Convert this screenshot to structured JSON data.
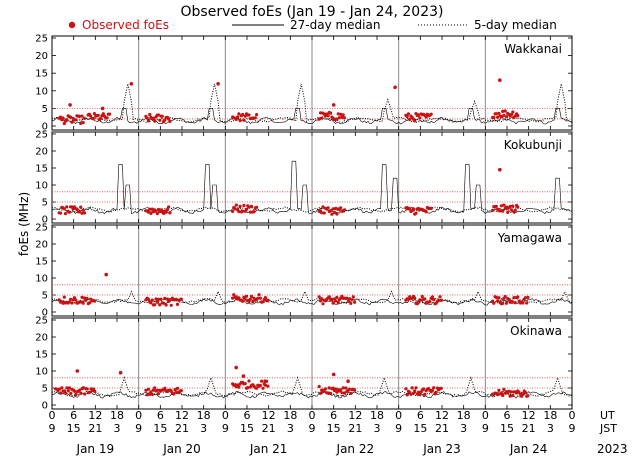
{
  "header": {
    "title": "Observed foEs (Jan 19 - Jan 24, 2023)",
    "legend_observed": "Observed foEs",
    "legend_27day": "27-day median",
    "legend_5day": "5-day median"
  },
  "axis": {
    "ylabel": "foEs (MHz)",
    "ut_label": "UT",
    "jst_label": "JST",
    "year_label": "2023",
    "ut_ticks": [
      "0",
      "6",
      "12",
      "18",
      "0",
      "6",
      "12",
      "18",
      "0",
      "6",
      "12",
      "18",
      "0",
      "6",
      "12",
      "18",
      "0",
      "6",
      "12",
      "18",
      "0",
      "6",
      "12",
      "18",
      "0"
    ],
    "jst_ticks": [
      "9",
      "15",
      "21",
      "3",
      "9",
      "15",
      "21",
      "3",
      "9",
      "15",
      "21",
      "3",
      "9",
      "15",
      "21",
      "3",
      "9",
      "15",
      "21",
      "3",
      "9",
      "15",
      "21",
      "3",
      "9"
    ],
    "day_labels": [
      "Jan 19",
      "Jan 20",
      "Jan 21",
      "Jan 22",
      "Jan 23",
      "Jan 24"
    ],
    "y_ticks": [
      "0",
      "5",
      "10",
      "15",
      "20",
      "25"
    ]
  },
  "colors": {
    "observed": "#cc1111",
    "median": "#000000",
    "threshold": "#d04040",
    "divider": "#888888"
  },
  "chart_data": {
    "type": "scatter",
    "title": "Observed foEs (Jan 19 - Jan 24, 2023)",
    "ylabel": "foEs (MHz)",
    "ylim": [
      0,
      25
    ],
    "x_unit": "UT hours from Jan 19 00:00",
    "xlim": [
      0,
      144
    ],
    "panels": [
      {
        "station": "Wakkanai",
        "threshold_lines": [
          2,
          5
        ],
        "median_27day_base": 1.5,
        "median_27day_spikes": [
          [
            20,
            5
          ],
          [
            44,
            5
          ],
          [
            68,
            5
          ],
          [
            92,
            5
          ],
          [
            116,
            5
          ],
          [
            140,
            5
          ]
        ],
        "median_5day_spikes": [
          [
            21,
            12
          ],
          [
            45,
            12
          ],
          [
            69,
            12
          ],
          [
            93,
            7.5
          ],
          [
            117,
            7
          ],
          [
            141,
            12
          ]
        ],
        "observed_clusters": [
          [
            2,
            9,
            1.8
          ],
          [
            10,
            16,
            2.5
          ],
          [
            26,
            33,
            2.2
          ],
          [
            50,
            57,
            2.5
          ],
          [
            74,
            81,
            2.8
          ],
          [
            98,
            105,
            2.5
          ],
          [
            122,
            129,
            3.5
          ]
        ],
        "observed_outliers": [
          [
            5,
            6
          ],
          [
            14,
            5
          ],
          [
            22,
            12
          ],
          [
            46,
            12
          ],
          [
            78,
            6
          ],
          [
            95,
            11
          ],
          [
            124,
            13
          ]
        ]
      },
      {
        "station": "Kokubunji",
        "threshold_lines": [
          5,
          8
        ],
        "median_27day_base": 2.5,
        "median_27day_spikes": [
          [
            19,
            16
          ],
          [
            21,
            10
          ],
          [
            43,
            16
          ],
          [
            45,
            10
          ],
          [
            67,
            17
          ],
          [
            70,
            10
          ],
          [
            92,
            16
          ],
          [
            95,
            12
          ],
          [
            115,
            16
          ],
          [
            118,
            10
          ],
          [
            140,
            12
          ]
        ],
        "median_5day_spikes": [],
        "observed_clusters": [
          [
            2,
            9,
            2.5
          ],
          [
            26,
            33,
            2.5
          ],
          [
            50,
            57,
            3
          ],
          [
            74,
            81,
            2.5
          ],
          [
            98,
            105,
            2.5
          ],
          [
            122,
            129,
            3
          ]
        ],
        "observed_outliers": [
          [
            124,
            14.5
          ]
        ]
      },
      {
        "station": "Yamagawa",
        "threshold_lines": [
          5,
          8
        ],
        "median_27day_base": 3,
        "median_27day_spikes": [],
        "median_5day_spikes": [
          [
            22,
            6
          ],
          [
            46,
            6
          ],
          [
            70,
            6
          ],
          [
            94,
            6
          ],
          [
            118,
            6
          ],
          [
            142,
            6
          ]
        ],
        "observed_clusters": [
          [
            2,
            12,
            3.5
          ],
          [
            26,
            36,
            3
          ],
          [
            50,
            60,
            4
          ],
          [
            74,
            84,
            3.5
          ],
          [
            98,
            108,
            3.5
          ],
          [
            122,
            132,
            3.5
          ]
        ],
        "observed_outliers": [
          [
            15,
            11
          ]
        ]
      },
      {
        "station": "Okinawa",
        "threshold_lines": [
          5,
          8
        ],
        "median_27day_base": 3,
        "median_27day_spikes": [],
        "median_5day_spikes": [
          [
            20,
            8
          ],
          [
            44,
            8
          ],
          [
            68,
            8
          ],
          [
            92,
            8
          ],
          [
            116,
            8
          ],
          [
            140,
            8
          ]
        ],
        "observed_clusters": [
          [
            1,
            12,
            4
          ],
          [
            26,
            36,
            4
          ],
          [
            50,
            60,
            6
          ],
          [
            74,
            84,
            4.5
          ],
          [
            98,
            108,
            4
          ],
          [
            122,
            132,
            3.5
          ]
        ],
        "observed_outliers": [
          [
            7,
            10
          ],
          [
            19,
            9.5
          ],
          [
            51,
            11
          ],
          [
            53,
            8.5
          ],
          [
            59,
            7
          ],
          [
            78,
            9
          ],
          [
            82,
            7
          ]
        ]
      }
    ]
  }
}
